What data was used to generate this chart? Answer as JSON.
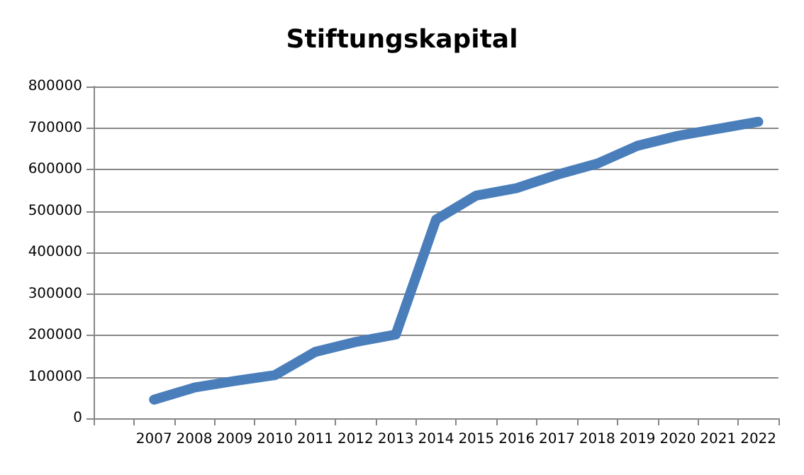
{
  "chart_data": {
    "type": "line",
    "title": "Stiftungskapital",
    "categories": [
      null,
      "2007",
      "2008",
      "2009",
      "2010",
      "2011",
      "2012",
      "2013",
      "2014",
      "2015",
      "2016",
      "2017",
      "2018",
      "2019",
      "2020",
      "2021",
      "2022"
    ],
    "series": [
      {
        "color": "#4a7ebb",
        "values": [
          null,
          45000,
          74000,
          90000,
          104000,
          160000,
          184000,
          202000,
          479000,
          537000,
          555000,
          587000,
          614000,
          657000,
          681000,
          698000,
          715000
        ]
      }
    ],
    "ylim": [
      0,
      800000
    ],
    "yticks": [
      0,
      100000,
      200000,
      300000,
      400000,
      500000,
      600000,
      700000,
      800000
    ],
    "grid": "y",
    "line_style": "solid"
  }
}
